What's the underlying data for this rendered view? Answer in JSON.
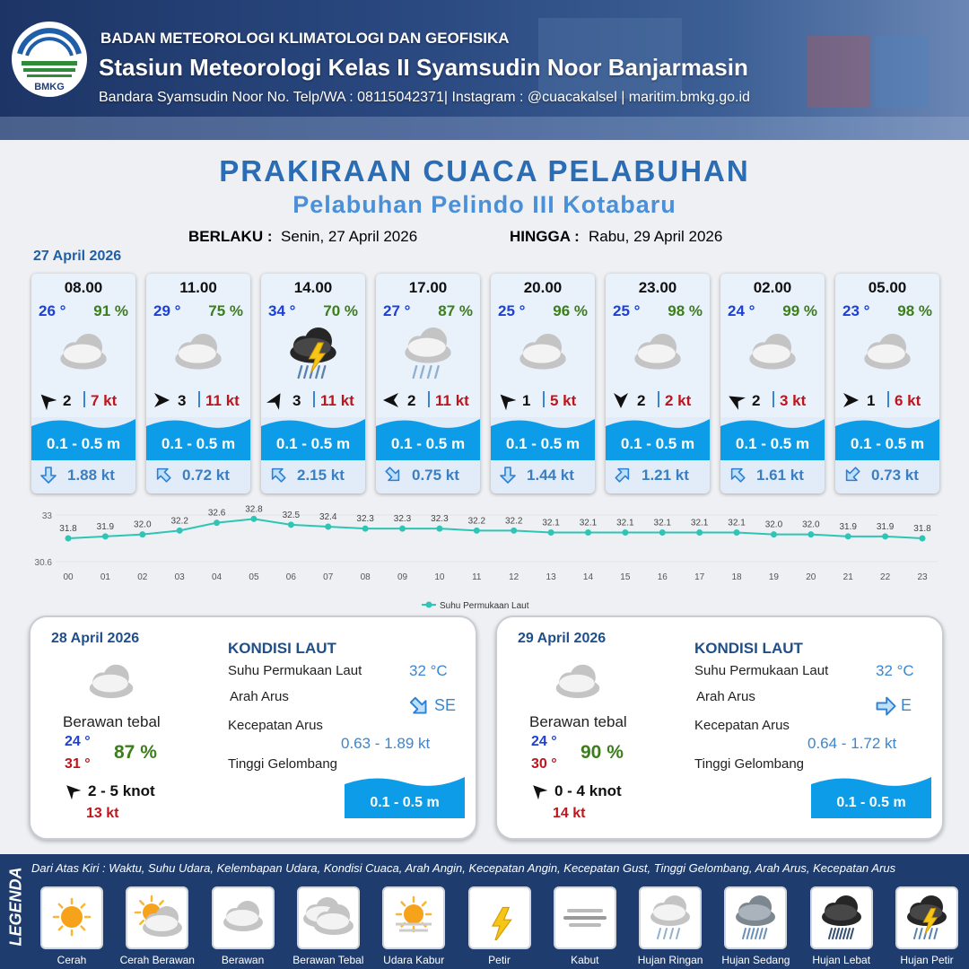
{
  "header": {
    "agency": "BADAN METEOROLOGI KLIMATOLOGI DAN GEOFISIKA",
    "station": "Stasiun Meteorologi Kelas II Syamsudin Noor Banjarmasin",
    "contact": "Bandara Syamsudin Noor No. Telp/WA : 08115042371| Instagram : @cuacakalsel | maritim.bmkg.go.id",
    "logo_text": "BMKG"
  },
  "title": "PRAKIRAAN CUACA PELABUHAN",
  "subtitle": "Pelabuhan Pelindo III Kotabaru",
  "validity": {
    "from_label": "BERLAKU :",
    "from": "Senin, 27 April 2026",
    "to_label": "HINGGA :",
    "to": "Rabu, 29 April 2026"
  },
  "day1": {
    "date": "27 April 2026",
    "slots": [
      {
        "time": "08.00",
        "temp": "26 °",
        "humidity": "91 %",
        "wind": 2,
        "gust": "7 kt",
        "wave": "0.1 - 0.5 m",
        "current": "1.88 kt"
      },
      {
        "time": "11.00",
        "temp": "29 °",
        "humidity": "75 %",
        "wind": 3,
        "gust": "11 kt",
        "wave": "0.1 - 0.5 m",
        "current": "0.72 kt"
      },
      {
        "time": "14.00",
        "temp": "34 °",
        "humidity": "70 %",
        "wind": 3,
        "gust": "11 kt",
        "wave": "0.1 - 0.5 m",
        "current": "2.15 kt"
      },
      {
        "time": "17.00",
        "temp": "27 °",
        "humidity": "87 %",
        "wind": 2,
        "gust": "11 kt",
        "wave": "0.1 - 0.5 m",
        "current": "0.75 kt"
      },
      {
        "time": "20.00",
        "temp": "25 °",
        "humidity": "96 %",
        "wind": 1,
        "gust": "5 kt",
        "wave": "0.1 - 0.5 m",
        "current": "1.44 kt"
      },
      {
        "time": "23.00",
        "temp": "25 °",
        "humidity": "98 %",
        "wind": 2,
        "gust": "2 kt",
        "wave": "0.1 - 0.5 m",
        "current": "1.21 kt"
      },
      {
        "time": "02.00",
        "temp": "24 °",
        "humidity": "99 %",
        "wind": 2,
        "gust": "3 kt",
        "wave": "0.1 - 0.5 m",
        "current": "1.61 kt"
      },
      {
        "time": "05.00",
        "temp": "23 °",
        "humidity": "98 %",
        "wind": 1,
        "gust": "6 kt",
        "wave": "0.1 - 0.5 m",
        "current": "0.73 kt"
      }
    ]
  },
  "chart_data": {
    "type": "line",
    "categories": [
      "00",
      "01",
      "02",
      "03",
      "04",
      "05",
      "06",
      "07",
      "08",
      "09",
      "10",
      "11",
      "12",
      "13",
      "14",
      "15",
      "16",
      "17",
      "18",
      "19",
      "20",
      "21",
      "22",
      "23"
    ],
    "series": [
      {
        "name": "Suhu Permukaan Laut",
        "color": "#2ec4b6",
        "values": [
          31.8,
          31.9,
          32.0,
          32.2,
          32.6,
          32.8,
          32.5,
          32.4,
          32.3,
          32.3,
          32.3,
          32.2,
          32.2,
          32.1,
          32.1,
          32.1,
          32.1,
          32.1,
          32.1,
          32.0,
          32.0,
          31.9,
          31.9,
          31.8
        ],
        "value_labels": [
          "31.8",
          "31.9",
          "32.0",
          "32.2",
          "32.6",
          "32.8",
          "32.5",
          "32.4",
          "32.3",
          "32.3",
          "32.3",
          "32.2",
          "32.2",
          "32.1",
          "32.1",
          "32.1",
          "32.1",
          "32.1",
          "32.1",
          "32.0",
          "32.0",
          "31.9",
          "31.9",
          "31.8"
        ]
      }
    ],
    "ylim": [
      30.6,
      33
    ],
    "yticks": [
      30.6,
      33
    ],
    "grid": true
  },
  "outlook": [
    {
      "date": "28 April 2026",
      "condition": "Berawan tebal",
      "temp_min": "24 °",
      "temp_max": "31 °",
      "humidity": "87 %",
      "wind": "2  - 5 knot",
      "gust": "13 kt",
      "sea_title": "KONDISI LAUT",
      "sst_label": "Suhu Permukaan Laut",
      "sst": "32 °C",
      "current_dir_label": "Arah Arus",
      "current_dir": "SE",
      "current_speed_label": "Kecepatan Arus",
      "current_speed": "0.63 - 1.89 kt",
      "wave_label": "Tinggi Gelombang",
      "wave": "0.1 - 0.5 m"
    },
    {
      "date": "29 April 2026",
      "condition": "Berawan tebal",
      "temp_min": "24 °",
      "temp_max": "30 °",
      "humidity": "90 %",
      "wind": "0  - 4 knot",
      "gust": "14 kt",
      "sea_title": "KONDISI LAUT",
      "sst_label": "Suhu Permukaan Laut",
      "sst": "32 °C",
      "current_dir_label": "Arah Arus",
      "current_dir": "E",
      "current_speed_label": "Kecepatan Arus",
      "current_speed": "0.64 - 1.72 kt",
      "wave_label": "Tinggi Gelombang",
      "wave": "0.1 - 0.5 m"
    }
  ],
  "legend": {
    "title": "LEGENDA",
    "note": "Dari Atas Kiri : Waktu, Suhu Udara, Kelembapan Udara, Kondisi Cuaca, Arah Angin, Kecepatan Angin, Kecepatan Gust, Tinggi Gelombang, Arah Arus, Kecepatan Arus",
    "items": [
      "Cerah",
      "Cerah Berawan",
      "Berawan",
      "Berawan Tebal",
      "Udara Kabur",
      "Petir",
      "Kabut",
      "Hujan Ringan",
      "Hujan Sedang",
      "Hujan Lebat",
      "Hujan Petir"
    ]
  }
}
